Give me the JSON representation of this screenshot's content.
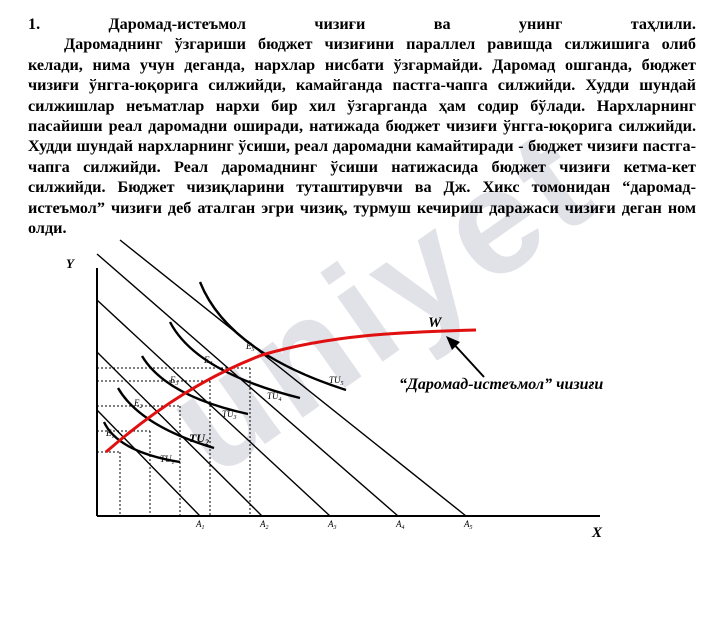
{
  "watermark": "uniyet",
  "heading": {
    "number": "1.",
    "words": [
      "Даромад-истеъмол",
      "чизиғи",
      "ва",
      "унинг",
      "таҳлили."
    ]
  },
  "paragraph": "Даромаднинг ўзгариши бюджет чизиғини параллел равишда силжишига олиб келади, нима учун деганда, нархлар нисбати ўзгармайди. Даромад ошганда, бюджет чизиғи ўнгга-юқорига силжийди, камайганда пастга-чапга силжийди. Худди шундай силжишлар неъматлар нархи бир хил ўзгарганда ҳам содир бўлади. Нархларнинг пасайиши реал даромадни оширади, натижада бюджет чизиғи ўнгга-юқорига силжийди. Худди шундай нархларнинг ўсиши, реал даромадни камайтиради - бюджет чизиғи пастга-чапга силжийди. Реал даромаднинг ўсиши натижасида бюджет чизиғи кетма-кет силжийди. Бюджет чизиқларини туташтирувчи ва Дж. Хикс томонидан “даромад-истеъмол” чизиғи деб аталган эгри чизиқ, турмуш кечириш даражаси чизиғи деган ном олди.",
  "graph": {
    "y_axis_label": "Y",
    "x_axis_label": "X",
    "curve_label": "W",
    "callout": "“Даромад-истеъмол” чизиғи",
    "colors": {
      "curve": "#e01010",
      "lines": "#000000"
    },
    "x_ticks": [
      {
        "base": "A",
        "sub": "1"
      },
      {
        "base": "A",
        "sub": "2"
      },
      {
        "base": "A",
        "sub": "3"
      },
      {
        "base": "A",
        "sub": "4"
      },
      {
        "base": "A",
        "sub": "5"
      }
    ],
    "equilibria": [
      {
        "base": "E",
        "sub": "1"
      },
      {
        "base": "E",
        "sub": "2"
      },
      {
        "base": "E",
        "sub": "3"
      },
      {
        "base": "E",
        "sub": "4"
      },
      {
        "base": "E",
        "sub": "5"
      }
    ],
    "indifference": [
      {
        "base": "TU",
        "sub": "1"
      },
      {
        "base": "TU",
        "sub": "2"
      },
      {
        "base": "TU",
        "sub": "3"
      },
      {
        "base": "TU",
        "sub": "4"
      },
      {
        "base": "TU",
        "sub": "5"
      }
    ]
  }
}
